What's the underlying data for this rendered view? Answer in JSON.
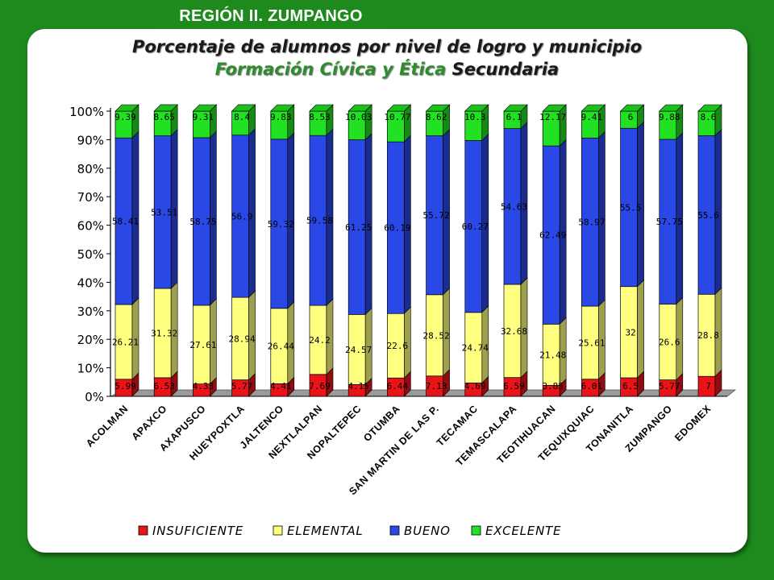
{
  "banner": "REGIÓN II. ZUMPANGO",
  "title_line1": "Porcentaje de alumnos por nivel de logro y municipio",
  "title_line2_green": "Formación Cívica y Ética",
  "title_line2_black": "Secundaria",
  "colors": {
    "frame": "#1e8a1e",
    "insuficiente": "#e8141a",
    "elemental": "#ffff80",
    "bueno": "#2a48e6",
    "excelente": "#22e022"
  },
  "chart_data": {
    "type": "bar",
    "stacked": true,
    "categories": [
      "ACOLMAN",
      "APAXCO",
      "AXAPUSCO",
      "HUEYPOXTLA",
      "JALTENCO",
      "NEXTLALPAN",
      "NOPALTEPEC",
      "OTUMBA",
      "SAN MARTIN DE LAS P.",
      "TECAMAC",
      "TEMASCALAPA",
      "TEOTIHUACAN",
      "TEQUIXQUIAC",
      "TONANITLA",
      "ZUMPANGO",
      "EDOMEX"
    ],
    "series": [
      {
        "name": "INSUFICIENTE",
        "color": "#e8141a",
        "values": [
          5.99,
          6.53,
          4.33,
          5.77,
          4.41,
          7.69,
          4.15,
          6.44,
          7.13,
          4.69,
          6.59,
          3.85,
          6.01,
          6.5,
          5.77,
          7
        ],
        "labels": [
          "5.99",
          "6.53",
          "4.33",
          "5.77",
          "4.41",
          "7.69",
          "4.15",
          "6.44",
          "7.13",
          "4.69",
          "6.59",
          "3.85",
          "6.01",
          "6.5",
          "5.77",
          "7"
        ]
      },
      {
        "name": "ELEMENTAL",
        "color": "#ffff80",
        "values": [
          26.21,
          31.32,
          27.61,
          28.94,
          26.44,
          24.2,
          24.57,
          22.6,
          28.52,
          24.74,
          32.68,
          21.48,
          25.61,
          32,
          26.6,
          28.8
        ],
        "labels": [
          "26.21",
          "31.32",
          "27.61",
          "28.94",
          "26.44",
          "24.2",
          "24.57",
          "22.6",
          "28.52",
          "24.74",
          "32.68",
          "21.48",
          "25.61",
          "32",
          "26.6",
          "28.8"
        ]
      },
      {
        "name": "BUENO",
        "color": "#2a48e6",
        "values": [
          58.41,
          53.51,
          58.75,
          56.9,
          59.32,
          59.58,
          61.25,
          60.19,
          55.72,
          60.27,
          54.63,
          62.49,
          58.97,
          55.5,
          57.75,
          55.6
        ],
        "labels": [
          "58.41",
          "53.51",
          "58.75",
          "56.9",
          "59.32",
          "59.58",
          "61.25",
          "60.19",
          "55.72",
          "60.27",
          "54.63",
          "62.49",
          "58.97",
          "55.5",
          "57.75",
          "55.6"
        ]
      },
      {
        "name": "EXCELENTE",
        "color": "#22e022",
        "values": [
          9.39,
          8.65,
          9.31,
          8.4,
          9.83,
          8.53,
          10.03,
          10.77,
          8.62,
          10.3,
          6.1,
          12.17,
          9.41,
          6,
          9.88,
          8.6
        ],
        "labels": [
          "9.39",
          "8.65",
          "9.31",
          "8.4",
          "9.83",
          "8.53",
          "10.03",
          "10.77",
          "8.62",
          "10.3",
          "6.1",
          "12.17",
          "9.41",
          "6",
          "9.88",
          "8.6"
        ]
      }
    ],
    "yticks": [
      "0%",
      "10%",
      "20%",
      "30%",
      "40%",
      "50%",
      "60%",
      "70%",
      "80%",
      "90%",
      "100%"
    ],
    "ylim": [
      0,
      100
    ],
    "legend_position": "bottom",
    "grid": false,
    "style": "3d"
  }
}
